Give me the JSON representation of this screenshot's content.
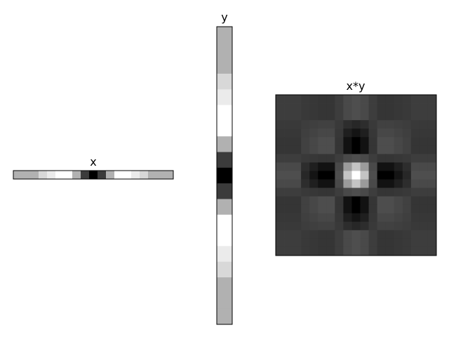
{
  "chart_data": [
    {
      "type": "heatmap",
      "title": "x",
      "cmap": "gray",
      "values": [
        [
          -0.1,
          -0.1,
          -0.1,
          0.1,
          0.2,
          0.3,
          0.3,
          -0.1,
          -0.7,
          -1,
          -0.7,
          -0.1,
          0.3,
          0.3,
          0.2,
          0.1,
          -0.1,
          -0.1,
          -0.1
        ]
      ]
    },
    {
      "type": "heatmap",
      "title": "y",
      "cmap": "gray",
      "values": [
        [
          -0.1
        ],
        [
          -0.1
        ],
        [
          -0.1
        ],
        [
          0.1
        ],
        [
          0.2
        ],
        [
          0.3
        ],
        [
          0.3
        ],
        [
          -0.1
        ],
        [
          -0.7
        ],
        [
          -1
        ],
        [
          -0.7
        ],
        [
          -0.1
        ],
        [
          0.3
        ],
        [
          0.3
        ],
        [
          0.2
        ],
        [
          0.1
        ],
        [
          -0.1
        ],
        [
          -0.1
        ],
        [
          -0.1
        ]
      ]
    },
    {
      "type": "heatmap",
      "title": "x*y",
      "cmap": "gray",
      "values": [
        [
          0.01,
          0.01,
          0.01,
          -0.01,
          -0.02,
          -0.03,
          -0.03,
          0.01,
          0.07,
          0.1,
          0.07,
          0.01,
          -0.03,
          -0.03,
          -0.02,
          -0.01,
          0.01,
          0.01,
          0.01
        ],
        [
          0.01,
          0.01,
          0.01,
          -0.01,
          -0.02,
          -0.03,
          -0.03,
          0.01,
          0.07,
          0.1,
          0.07,
          0.01,
          -0.03,
          -0.03,
          -0.02,
          -0.01,
          0.01,
          0.01,
          0.01
        ],
        [
          0.01,
          0.01,
          0.01,
          -0.01,
          -0.02,
          -0.03,
          -0.03,
          0.01,
          0.07,
          0.1,
          0.07,
          0.01,
          -0.03,
          -0.03,
          -0.02,
          -0.01,
          0.01,
          0.01,
          0.01
        ],
        [
          -0.01,
          -0.01,
          -0.01,
          0.01,
          0.02,
          0.03,
          0.03,
          -0.01,
          -0.07,
          -0.1,
          -0.07,
          -0.01,
          0.03,
          0.03,
          0.02,
          0.01,
          -0.01,
          -0.01,
          -0.01
        ],
        [
          -0.02,
          -0.02,
          -0.02,
          0.02,
          0.04,
          0.06,
          0.06,
          -0.02,
          -0.14,
          -0.2,
          -0.14,
          -0.02,
          0.06,
          0.06,
          0.04,
          0.02,
          -0.02,
          -0.02,
          -0.02
        ],
        [
          -0.03,
          -0.03,
          -0.03,
          0.03,
          0.06,
          0.09,
          0.09,
          -0.03,
          -0.21,
          -0.3,
          -0.21,
          -0.03,
          0.09,
          0.09,
          0.06,
          0.03,
          -0.03,
          -0.03,
          -0.03
        ],
        [
          -0.03,
          -0.03,
          -0.03,
          0.03,
          0.06,
          0.09,
          0.09,
          -0.03,
          -0.21,
          -0.3,
          -0.21,
          -0.03,
          0.09,
          0.09,
          0.06,
          0.03,
          -0.03,
          -0.03,
          -0.03
        ],
        [
          0.01,
          0.01,
          0.01,
          -0.01,
          -0.02,
          -0.03,
          -0.03,
          0.01,
          0.07,
          0.1,
          0.07,
          0.01,
          -0.03,
          -0.03,
          -0.02,
          -0.01,
          0.01,
          0.01,
          0.01
        ],
        [
          0.07,
          0.07,
          0.07,
          -0.07,
          -0.14,
          -0.21,
          -0.21,
          0.07,
          0.49,
          0.7,
          0.49,
          0.07,
          -0.21,
          -0.21,
          -0.14,
          -0.07,
          0.07,
          0.07,
          0.07
        ],
        [
          0.1,
          0.1,
          0.1,
          -0.1,
          -0.2,
          -0.3,
          -0.3,
          0.1,
          0.7,
          1,
          0.7,
          0.1,
          -0.3,
          -0.3,
          -0.2,
          -0.1,
          0.1,
          0.1,
          0.1
        ],
        [
          0.07,
          0.07,
          0.07,
          -0.07,
          -0.14,
          -0.21,
          -0.21,
          0.07,
          0.49,
          0.7,
          0.49,
          0.07,
          -0.21,
          -0.21,
          -0.14,
          -0.07,
          0.07,
          0.07,
          0.07
        ],
        [
          0.01,
          0.01,
          0.01,
          -0.01,
          -0.02,
          -0.03,
          -0.03,
          0.01,
          0.07,
          0.1,
          0.07,
          0.01,
          -0.03,
          -0.03,
          -0.02,
          -0.01,
          0.01,
          0.01,
          0.01
        ],
        [
          -0.03,
          -0.03,
          -0.03,
          0.03,
          0.06,
          0.09,
          0.09,
          -0.03,
          -0.21,
          -0.3,
          -0.21,
          -0.03,
          0.09,
          0.09,
          0.06,
          0.03,
          -0.03,
          -0.03,
          -0.03
        ],
        [
          -0.03,
          -0.03,
          -0.03,
          0.03,
          0.06,
          0.09,
          0.09,
          -0.03,
          -0.21,
          -0.3,
          -0.21,
          -0.03,
          0.09,
          0.09,
          0.06,
          0.03,
          -0.03,
          -0.03,
          -0.03
        ],
        [
          -0.02,
          -0.02,
          -0.02,
          0.02,
          0.04,
          0.06,
          0.06,
          -0.02,
          -0.14,
          -0.2,
          -0.14,
          -0.02,
          0.06,
          0.06,
          0.04,
          0.02,
          -0.02,
          -0.02,
          -0.02
        ],
        [
          -0.01,
          -0.01,
          -0.01,
          0.01,
          0.02,
          0.03,
          0.03,
          -0.01,
          -0.07,
          -0.1,
          -0.07,
          -0.01,
          0.03,
          0.03,
          0.02,
          0.01,
          -0.01,
          -0.01,
          -0.01
        ],
        [
          0.01,
          0.01,
          0.01,
          -0.01,
          -0.02,
          -0.03,
          -0.03,
          0.01,
          0.07,
          0.1,
          0.07,
          0.01,
          -0.03,
          -0.03,
          -0.02,
          -0.01,
          0.01,
          0.01,
          0.01
        ],
        [
          0.01,
          0.01,
          0.01,
          -0.01,
          -0.02,
          -0.03,
          -0.03,
          0.01,
          0.07,
          0.1,
          0.07,
          0.01,
          -0.03,
          -0.03,
          -0.02,
          -0.01,
          0.01,
          0.01,
          0.01
        ],
        [
          0.01,
          0.01,
          0.01,
          -0.01,
          -0.02,
          -0.03,
          -0.03,
          0.01,
          0.07,
          0.1,
          0.07,
          0.01,
          -0.03,
          -0.03,
          -0.02,
          -0.01,
          0.01,
          0.01,
          0.01
        ]
      ]
    }
  ]
}
